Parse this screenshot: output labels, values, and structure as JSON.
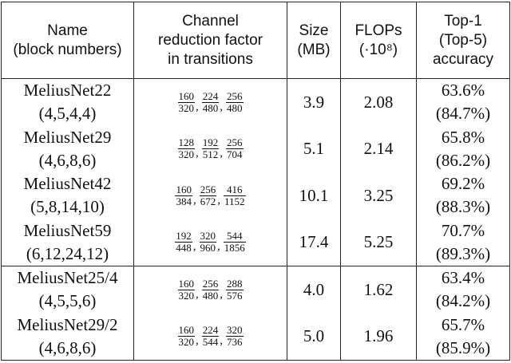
{
  "headers": {
    "name": [
      "Name",
      "(block numbers)"
    ],
    "reduction": [
      "Channel",
      "reduction factor",
      "in transitions"
    ],
    "size": [
      "Size",
      "(MB)"
    ],
    "flops": [
      "FLOPs",
      "(·10⁸)"
    ],
    "accuracy": [
      "Top-1",
      "(Top-5)",
      "accuracy"
    ]
  },
  "rows": [
    {
      "name": "MeliusNet22",
      "blocks": "(4,5,4,4)",
      "fractions": [
        [
          "160",
          "320"
        ],
        [
          "224",
          "480"
        ],
        [
          "256",
          "480"
        ]
      ],
      "size": "3.9",
      "flops": "2.08",
      "top1": "63.6%",
      "top5": "(84.7%)"
    },
    {
      "name": "MeliusNet29",
      "blocks": "(4,6,8,6)",
      "fractions": [
        [
          "128",
          "320"
        ],
        [
          "192",
          "512"
        ],
        [
          "256",
          "704"
        ]
      ],
      "size": "5.1",
      "flops": "2.14",
      "top1": "65.8%",
      "top5": "(86.2%)"
    },
    {
      "name": "MeliusNet42",
      "blocks": "(5,8,14,10)",
      "fractions": [
        [
          "160",
          "384"
        ],
        [
          "256",
          "672"
        ],
        [
          "416",
          "1152"
        ]
      ],
      "size": "10.1",
      "flops": "3.25",
      "top1": "69.2%",
      "top5": "(88.3%)"
    },
    {
      "name": "MeliusNet59",
      "blocks": "(6,12,24,12)",
      "fractions": [
        [
          "192",
          "448"
        ],
        [
          "320",
          "960"
        ],
        [
          "544",
          "1856"
        ]
      ],
      "size": "17.4",
      "flops": "5.25",
      "top1": "70.7%",
      "top5": "(89.3%)"
    },
    {
      "name": "MeliusNet25/4",
      "blocks": "(4,5,5,6)",
      "fractions": [
        [
          "160",
          "320"
        ],
        [
          "256",
          "480"
        ],
        [
          "288",
          "576"
        ]
      ],
      "size": "4.0",
      "flops": "1.62",
      "top1": "63.4%",
      "top5": "(84.2%)"
    },
    {
      "name": "MeliusNet29/2",
      "blocks": "(4,6,8,6)",
      "fractions": [
        [
          "160",
          "320"
        ],
        [
          "224",
          "544"
        ],
        [
          "320",
          "736"
        ]
      ],
      "size": "5.0",
      "flops": "1.96",
      "top1": "65.7%",
      "top5": "(85.9%)"
    }
  ]
}
